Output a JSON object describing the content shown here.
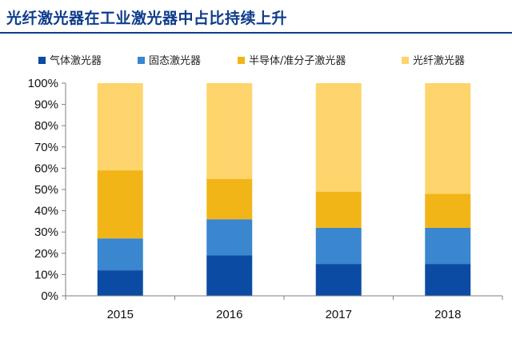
{
  "title": "光纤激光器在工业激光器中占比持续上升",
  "chart_data": {
    "type": "bar",
    "stacked": true,
    "categories": [
      "2015",
      "2016",
      "2017",
      "2018"
    ],
    "series": [
      {
        "name": "气体激光器",
        "color": "#0b4ba3",
        "values": [
          12,
          19,
          15,
          15
        ]
      },
      {
        "name": "固态激光器",
        "color": "#3a86cf",
        "values": [
          15,
          17,
          17,
          17
        ]
      },
      {
        "name": "半导体/准分子激光器",
        "color": "#f2b517",
        "values": [
          32,
          19,
          17,
          16
        ]
      },
      {
        "name": "光纤激光器",
        "color": "#fdd56c",
        "values": [
          41,
          45,
          51,
          52
        ]
      }
    ],
    "y_tick_labels": [
      "0%",
      "10%",
      "20%",
      "30%",
      "40%",
      "50%",
      "60%",
      "70%",
      "80%",
      "90%",
      "100%"
    ],
    "ylim": [
      0,
      100
    ],
    "grid": false,
    "legend_position": "top"
  }
}
